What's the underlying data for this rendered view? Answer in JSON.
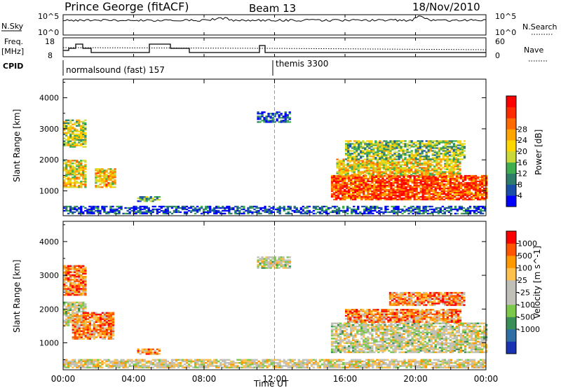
{
  "header": {
    "station": "Prince George (fitACF)",
    "beam": "Beam 13",
    "date": "18/Nov/2010"
  },
  "side_labels": {
    "nsky": "N.Sky",
    "nsky_ticks": [
      "10^5",
      "10^0"
    ],
    "nsearch": "N.Search",
    "nsearch_ticks": [
      "10^5",
      "10^0"
    ],
    "freq": "Freq.",
    "freq_unit": "[MHz]",
    "freq_ticks": [
      "18",
      "8"
    ],
    "nave": "Nave",
    "nave_ticks": [
      "60",
      "0"
    ],
    "cpid": "CPID"
  },
  "cpid_segments": [
    {
      "label": "normalsound (fast) 157",
      "start_hour": 0
    },
    {
      "label": "themis 3300",
      "start_hour": 11.9
    }
  ],
  "colors": {
    "power_scale": [
      "#0000ff",
      "#1a4fa8",
      "#2e7d6b",
      "#3fae4e",
      "#c9d93a",
      "#ffd700",
      "#ffa500",
      "#ff6a00",
      "#ff2a00",
      "#ff0000"
    ],
    "velocity_scale": [
      "#1a33b3",
      "#2f6fa6",
      "#3a8f58",
      "#7cc84a",
      "#c0c0b8",
      "#c0c0b8",
      "#ffc14d",
      "#ff9900",
      "#ff5500",
      "#ff0000"
    ]
  },
  "chart_data": [
    {
      "type": "heatmap",
      "name": "power",
      "ylabel": "Slant Range [km]",
      "xlabel": "Time UT",
      "xticks": [
        "00:00",
        "04:00",
        "08:00",
        "12:00",
        "16:00",
        "20:00",
        "00:00"
      ],
      "yticks": [
        "1000",
        "2000",
        "3000",
        "4000"
      ],
      "ylim": [
        200,
        4600
      ],
      "xlim": [
        0,
        24
      ],
      "colorbar": {
        "label": "Power [dB]",
        "ticks": [
          "4",
          "8",
          "12",
          "16",
          "20",
          "24",
          "28"
        ]
      },
      "regions": [
        {
          "t0": 0.0,
          "t1": 1.3,
          "r0": 1100,
          "r1": 2000,
          "level": 0.55
        },
        {
          "t0": 0.0,
          "t1": 1.3,
          "r0": 2400,
          "r1": 3300,
          "level": 0.45
        },
        {
          "t0": 1.8,
          "t1": 2.9,
          "r0": 1100,
          "r1": 1700,
          "level": 0.6
        },
        {
          "t0": 4.2,
          "t1": 5.5,
          "r0": 650,
          "r1": 800,
          "level": 0.3
        },
        {
          "t0": 11.0,
          "t1": 12.8,
          "r0": 3200,
          "r1": 3550,
          "level": 0.15
        },
        {
          "t0": 15.2,
          "t1": 24.0,
          "r0": 700,
          "r1": 1500,
          "level": 0.8
        },
        {
          "t0": 15.5,
          "t1": 22.5,
          "r0": 1500,
          "r1": 2000,
          "level": 0.55
        },
        {
          "t0": 16.0,
          "t1": 22.8,
          "r0": 2000,
          "r1": 2600,
          "level": 0.4
        },
        {
          "t0": 0.0,
          "t1": 24.0,
          "r0": 250,
          "r1": 500,
          "level": 0.15
        }
      ]
    },
    {
      "type": "heatmap",
      "name": "velocity",
      "ylabel": "Slant Range [km]",
      "xlabel": "Time UT",
      "xticks": [
        "00:00",
        "04:00",
        "08:00",
        "12:00",
        "16:00",
        "20:00",
        "00:00"
      ],
      "yticks": [
        "1000",
        "2000",
        "3000",
        "4000"
      ],
      "ylim": [
        200,
        4600
      ],
      "xlim": [
        0,
        24
      ],
      "colorbar": {
        "label": "Velocity [m s^-1]",
        "ticks": [
          "1000",
          "500",
          "100",
          "25",
          "-25",
          "-100",
          "-500",
          "-1000"
        ]
      },
      "regions": [
        {
          "t0": 0.0,
          "t1": 1.3,
          "r0": 1500,
          "r1": 2200,
          "level": 0.5
        },
        {
          "t0": 0.0,
          "t1": 1.3,
          "r0": 2400,
          "r1": 3300,
          "level": 0.75
        },
        {
          "t0": 0.5,
          "t1": 2.9,
          "r0": 1100,
          "r1": 1900,
          "level": 0.75
        },
        {
          "t0": 4.2,
          "t1": 5.5,
          "r0": 650,
          "r1": 800,
          "level": 0.75
        },
        {
          "t0": 11.0,
          "t1": 12.8,
          "r0": 3200,
          "r1": 3550,
          "level": 0.5
        },
        {
          "t0": 15.2,
          "t1": 24.0,
          "r0": 700,
          "r1": 1600,
          "level": 0.5
        },
        {
          "t0": 16.0,
          "t1": 22.5,
          "r0": 1600,
          "r1": 2000,
          "level": 0.75
        },
        {
          "t0": 18.5,
          "t1": 22.8,
          "r0": 2100,
          "r1": 2500,
          "level": 0.75
        },
        {
          "t0": 0.0,
          "t1": 24.0,
          "r0": 250,
          "r1": 500,
          "level": 0.55
        }
      ]
    }
  ]
}
